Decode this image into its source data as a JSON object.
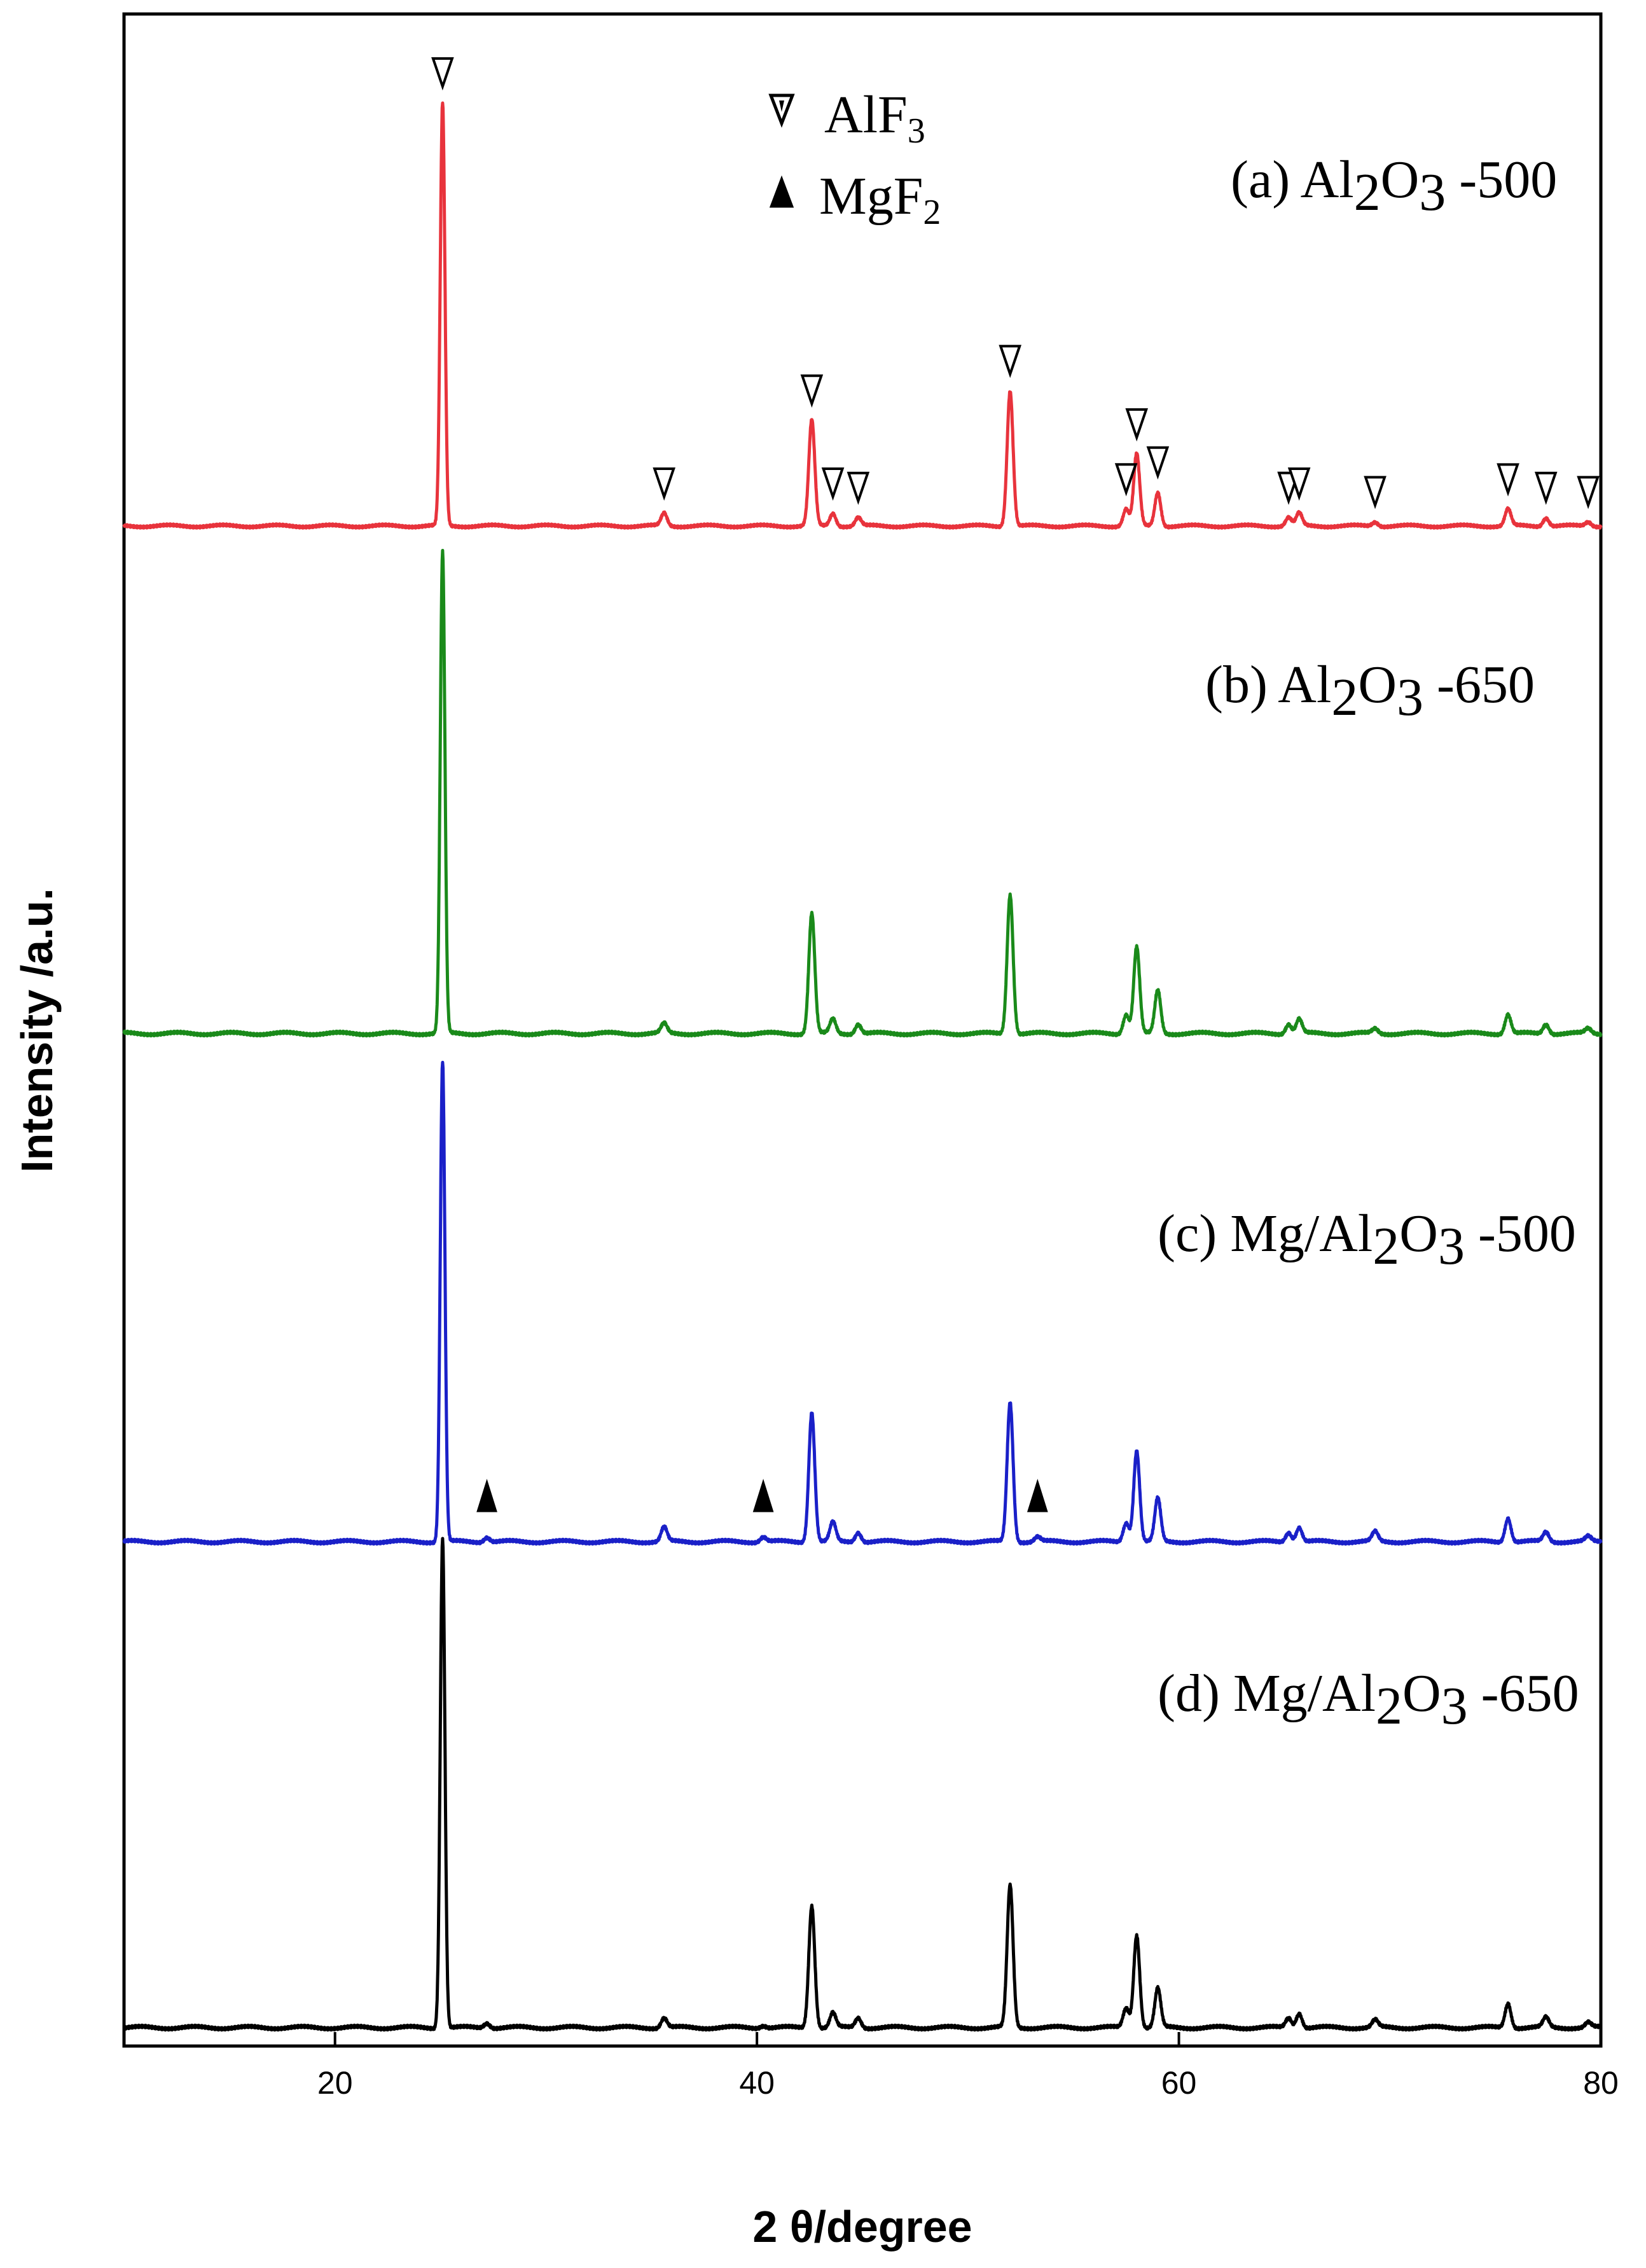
{
  "chart_data": {
    "type": "line",
    "title": "",
    "xlabel": "2 θ/degree",
    "ylabel": "Intensity /a.u.",
    "xlim": [
      10,
      80
    ],
    "ylim": [
      0,
      1
    ],
    "x_ticks": [
      20,
      40,
      60,
      80
    ],
    "x_tick_labels": [
      "20",
      "40",
      "60",
      "80"
    ],
    "y_ticks": [],
    "grid": false,
    "stacked_offset_plot": true,
    "legend": [
      {
        "marker": "open-down-triangle",
        "label": "AlF",
        "subscript": "3"
      },
      {
        "marker": "filled-up-triangle",
        "label": "MgF",
        "subscript": "2"
      }
    ],
    "series": [
      {
        "name": "(a) Al2O3 -500",
        "label_parts": [
          "(a) Al",
          "2",
          "O",
          "3",
          " -500"
        ],
        "color": "#e8333c",
        "peaks": [
          {
            "x": 25.1,
            "h": 1.0
          },
          {
            "x": 35.6,
            "h": 0.03
          },
          {
            "x": 42.6,
            "h": 0.25
          },
          {
            "x": 43.6,
            "h": 0.03
          },
          {
            "x": 44.8,
            "h": 0.02
          },
          {
            "x": 52.0,
            "h": 0.32
          },
          {
            "x": 57.5,
            "h": 0.04
          },
          {
            "x": 58.0,
            "h": 0.17
          },
          {
            "x": 59.0,
            "h": 0.08
          },
          {
            "x": 65.2,
            "h": 0.02
          },
          {
            "x": 65.7,
            "h": 0.03
          },
          {
            "x": 69.3,
            "h": 0.01
          },
          {
            "x": 75.6,
            "h": 0.04
          },
          {
            "x": 77.4,
            "h": 0.02
          },
          {
            "x": 79.4,
            "h": 0.01
          }
        ]
      },
      {
        "name": "(b) Al2O3 -650",
        "label_parts": [
          "(b) Al",
          "2",
          "O",
          "3",
          " -650"
        ],
        "color": "#1a8a1a",
        "peaks": [
          {
            "x": 25.1,
            "h": 1.0
          },
          {
            "x": 35.6,
            "h": 0.02
          },
          {
            "x": 42.6,
            "h": 0.25
          },
          {
            "x": 43.6,
            "h": 0.03
          },
          {
            "x": 44.8,
            "h": 0.02
          },
          {
            "x": 52.0,
            "h": 0.29
          },
          {
            "x": 57.5,
            "h": 0.04
          },
          {
            "x": 58.0,
            "h": 0.18
          },
          {
            "x": 59.0,
            "h": 0.09
          },
          {
            "x": 65.2,
            "h": 0.02
          },
          {
            "x": 65.7,
            "h": 0.03
          },
          {
            "x": 69.3,
            "h": 0.01
          },
          {
            "x": 75.6,
            "h": 0.04
          },
          {
            "x": 77.4,
            "h": 0.02
          },
          {
            "x": 79.4,
            "h": 0.01
          }
        ]
      },
      {
        "name": "(c) Mg/Al2O3 -500",
        "label_parts": [
          "(c) Mg/Al",
          "2",
          "O",
          "3",
          " -500"
        ],
        "color": "#1a20c8",
        "peaks": [
          {
            "x": 25.1,
            "h": 1.0
          },
          {
            "x": 27.2,
            "h": 0.01
          },
          {
            "x": 35.6,
            "h": 0.03
          },
          {
            "x": 40.3,
            "h": 0.01
          },
          {
            "x": 42.6,
            "h": 0.27
          },
          {
            "x": 43.6,
            "h": 0.04
          },
          {
            "x": 44.8,
            "h": 0.02
          },
          {
            "x": 52.0,
            "h": 0.29
          },
          {
            "x": 53.3,
            "h": 0.01
          },
          {
            "x": 57.5,
            "h": 0.04
          },
          {
            "x": 58.0,
            "h": 0.19
          },
          {
            "x": 59.0,
            "h": 0.09
          },
          {
            "x": 65.2,
            "h": 0.02
          },
          {
            "x": 65.7,
            "h": 0.03
          },
          {
            "x": 69.3,
            "h": 0.02
          },
          {
            "x": 75.6,
            "h": 0.05
          },
          {
            "x": 77.4,
            "h": 0.02
          },
          {
            "x": 79.4,
            "h": 0.01
          }
        ]
      },
      {
        "name": "(d) Mg/Al2O3 -650",
        "label_parts": [
          "(d) Mg/Al",
          "2",
          "O",
          "3",
          " -650"
        ],
        "color": "#000000",
        "peaks": [
          {
            "x": 25.1,
            "h": 1.0
          },
          {
            "x": 27.2,
            "h": 0.01
          },
          {
            "x": 35.6,
            "h": 0.02
          },
          {
            "x": 40.3,
            "h": 0.005
          },
          {
            "x": 42.6,
            "h": 0.25
          },
          {
            "x": 43.6,
            "h": 0.03
          },
          {
            "x": 44.8,
            "h": 0.02
          },
          {
            "x": 52.0,
            "h": 0.29
          },
          {
            "x": 57.5,
            "h": 0.04
          },
          {
            "x": 58.0,
            "h": 0.19
          },
          {
            "x": 59.0,
            "h": 0.08
          },
          {
            "x": 65.2,
            "h": 0.02
          },
          {
            "x": 65.7,
            "h": 0.03
          },
          {
            "x": 69.3,
            "h": 0.015
          },
          {
            "x": 75.6,
            "h": 0.05
          },
          {
            "x": 77.4,
            "h": 0.02
          },
          {
            "x": 79.4,
            "h": 0.01
          }
        ]
      }
    ],
    "annotations": {
      "AlF3_markers_on": "(a) Al2O3 -500",
      "AlF3_marker_2theta": [
        25.1,
        35.6,
        42.6,
        43.6,
        44.8,
        52.0,
        57.5,
        58.0,
        59.0,
        65.2,
        65.7,
        69.3,
        75.6,
        77.4,
        79.4
      ],
      "MgF2_markers_on": "(c) Mg/Al2O3 -500",
      "MgF2_marker_2theta": [
        27.2,
        40.3,
        53.3
      ]
    }
  }
}
